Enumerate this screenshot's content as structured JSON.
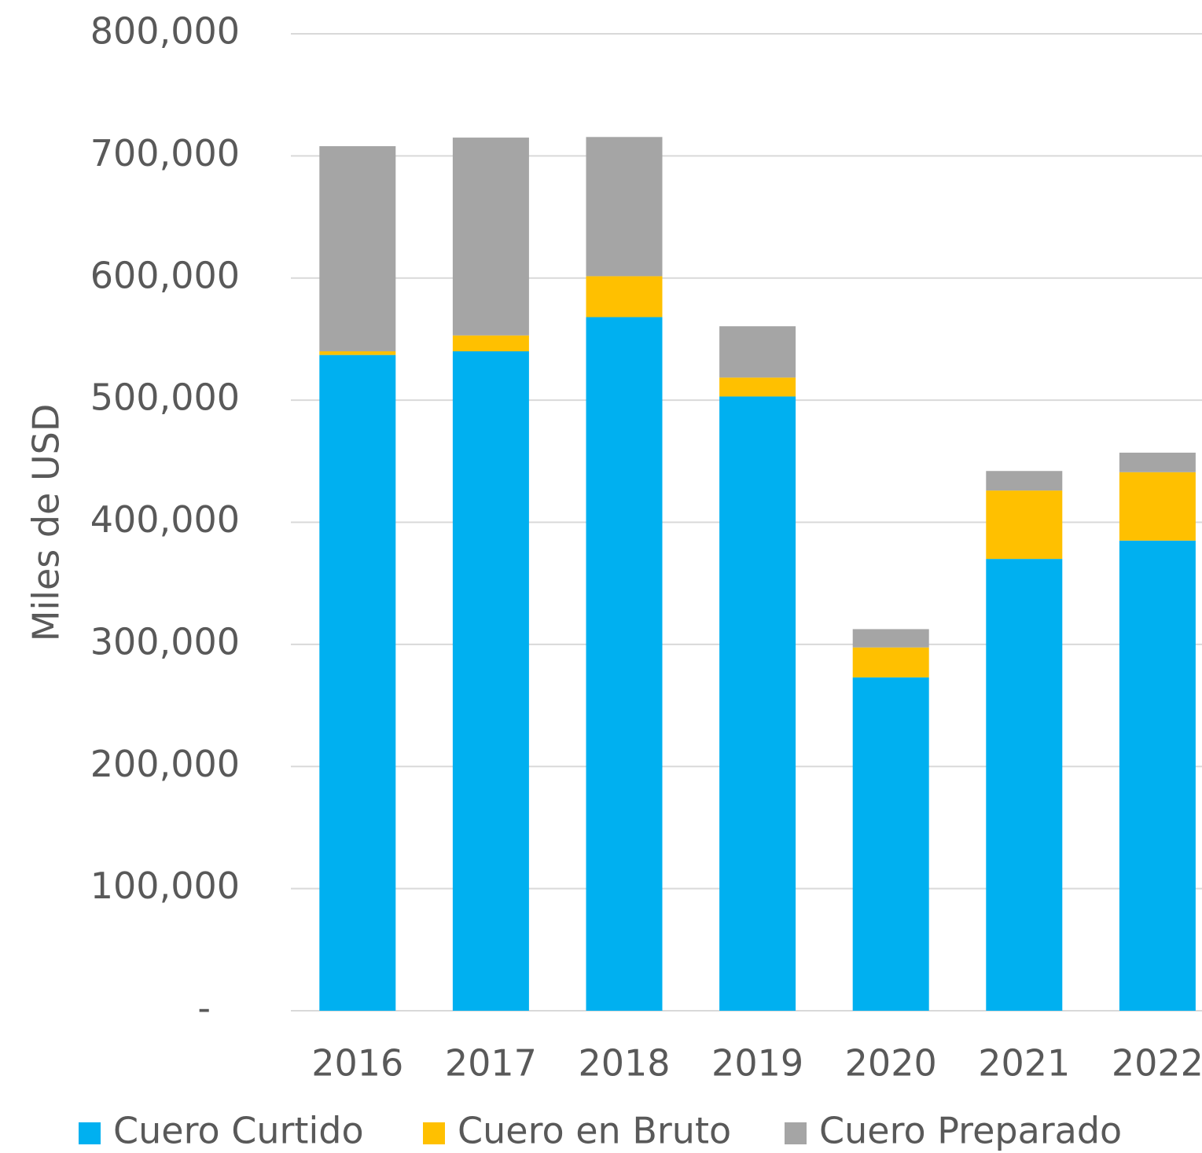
{
  "chart_data": {
    "type": "stacked_bar",
    "y_label": "Miles de USD",
    "categories": [
      "2016",
      "2017",
      "2018",
      "2019",
      "2020",
      "2021",
      "2022"
    ],
    "series": [
      {
        "name": "Cuero Curtido",
        "color": "#00b0f0",
        "values": [
          537000,
          540000,
          568000,
          503000,
          273000,
          370000,
          385000
        ]
      },
      {
        "name": "Cuero en Bruto",
        "color": "#ffc000",
        "values": [
          3000,
          13000,
          33500,
          15500,
          24500,
          56000,
          56000
        ]
      },
      {
        "name": "Cuero Preparado",
        "color": "#a5a5a5",
        "values": [
          168000,
          162000,
          114000,
          42000,
          15000,
          16000,
          16000
        ]
      }
    ],
    "ylim": [
      0,
      800000
    ],
    "yticks": [
      {
        "value": 0,
        "label": "-"
      },
      {
        "value": 100000,
        "label": "100,000"
      },
      {
        "value": 200000,
        "label": "200,000"
      },
      {
        "value": 300000,
        "label": "300,000"
      },
      {
        "value": 400000,
        "label": "400,000"
      },
      {
        "value": 500000,
        "label": "500,000"
      },
      {
        "value": 600000,
        "label": "600,000"
      },
      {
        "value": 700000,
        "label": "700,000"
      },
      {
        "value": 800000,
        "label": "800,000"
      }
    ],
    "grid": true,
    "legend": "bottom"
  }
}
